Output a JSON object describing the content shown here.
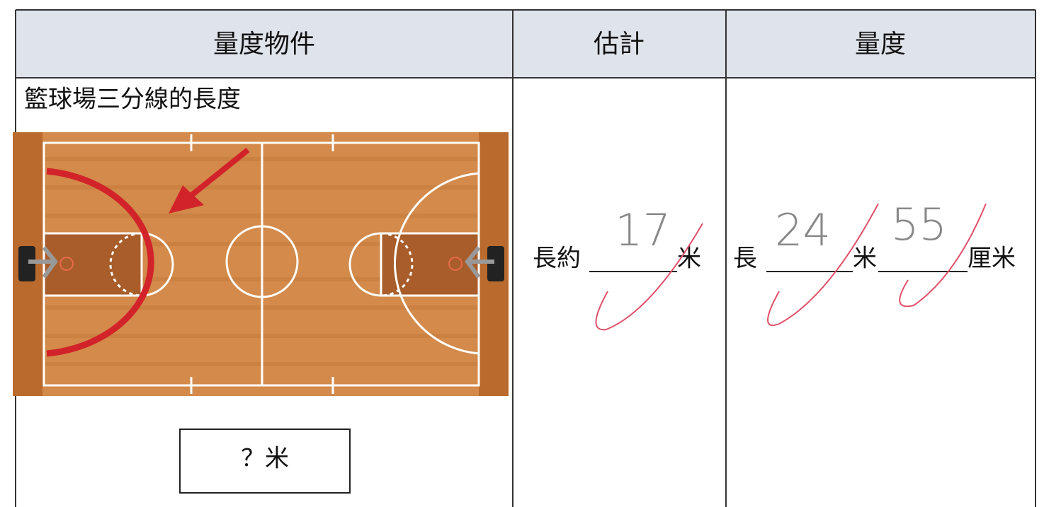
{
  "table": {
    "header": [
      "量度物件",
      "估計",
      "量度"
    ],
    "rows": [
      {
        "object": "籃球場三分線的長度",
        "box": "？米",
        "estimate": {
          "prefix": "長約",
          "value": 17,
          "unit": "米"
        },
        "measure": {
          "prefix": "長",
          "meters": 24,
          "meter_unit": "米",
          "centimeters": 55,
          "centimeter_unit": "厘米"
        }
      }
    ]
  }
}
